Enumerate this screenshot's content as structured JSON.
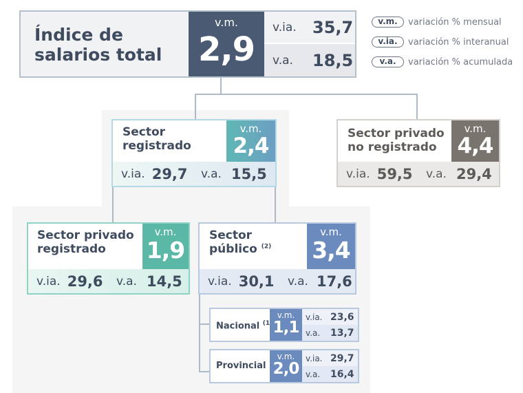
{
  "total": {
    "title_line1": "Índice de",
    "title_line2": "salarios total",
    "vm_label": "v.m.",
    "vm_value": "2,9",
    "via_label": "v.ia.",
    "via_value": "35,7",
    "va_label": "v.a.",
    "va_value": "18,5"
  },
  "legend": [
    {
      "abbr": "v.m.",
      "text": "variación % mensual"
    },
    {
      "abbr": "v.ia.",
      "text": "variación % interanual"
    },
    {
      "abbr": "v.a.",
      "text": "variación % acumulada"
    }
  ],
  "registered": {
    "title_line1": "Sector",
    "title_line2": "registrado",
    "vm_label": "v.m.",
    "vm_value": "2,4",
    "via_label": "v.ia.",
    "via_value": "29,7",
    "va_label": "v.a.",
    "va_value": "15,5"
  },
  "unregistered": {
    "title_line1": "Sector privado",
    "title_line2": "no registrado",
    "vm_label": "v.m.",
    "vm_value": "4,4",
    "via_label": "v.ia.",
    "via_value": "59,5",
    "va_label": "v.a.",
    "va_value": "29,4"
  },
  "private_registered": {
    "title_line1": "Sector privado",
    "title_line2": "registrado",
    "vm_label": "v.m.",
    "vm_value": "1,9",
    "via_label": "v.ia.",
    "via_value": "29,6",
    "va_label": "v.a.",
    "va_value": "14,5"
  },
  "public": {
    "title_line1": "Sector",
    "title_line2": "público",
    "note": "(2)",
    "vm_label": "v.m.",
    "vm_value": "3,4",
    "via_label": "v.ia.",
    "via_value": "30,1",
    "va_label": "v.a.",
    "va_value": "17,6"
  },
  "national": {
    "title": "Nacional",
    "note": "(1)",
    "vm_label": "v.m.",
    "vm_value": "1,1",
    "via_label": "v.ia.",
    "via_value": "23,6",
    "va_label": "v.a.",
    "va_value": "13,7"
  },
  "provincial": {
    "title": "Provincial",
    "vm_label": "v.m.",
    "vm_value": "2,0",
    "via_label": "v.ia.",
    "via_value": "29,7",
    "va_label": "v.a.",
    "va_value": "16,4"
  }
}
